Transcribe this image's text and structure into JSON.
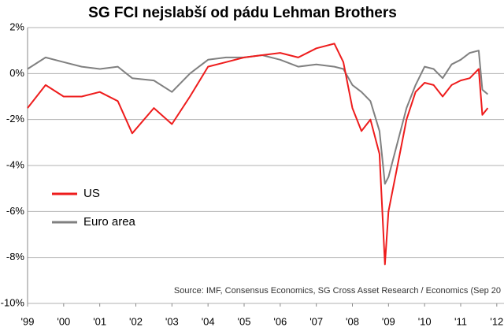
{
  "chart_data": {
    "type": "line",
    "title": "SG FCI nejslabší od pádu Lehman Brothers",
    "note": "Source: IMF, Consensus Economics, SG Cross Asset Research / Economics (Sep 20",
    "x": [
      1999,
      1999.5,
      2000,
      2000.5,
      2001,
      2001.5,
      2001.9,
      2002.5,
      2003,
      2003.5,
      2004,
      2004.5,
      2005,
      2005.5,
      2006,
      2006.5,
      2007,
      2007.5,
      2007.75,
      2008,
      2008.25,
      2008.5,
      2008.75,
      2008.9,
      2009,
      2009.25,
      2009.5,
      2009.75,
      2010,
      2010.25,
      2010.5,
      2010.75,
      2011,
      2011.25,
      2011.5,
      2011.6,
      2011.75
    ],
    "series": [
      {
        "name": "US",
        "color": "#ee1c1c",
        "values": [
          -1.5,
          -0.5,
          -1.0,
          -1.0,
          -0.8,
          -1.2,
          -2.6,
          -1.5,
          -2.2,
          -1.0,
          0.3,
          0.5,
          0.7,
          0.8,
          0.9,
          0.7,
          1.1,
          1.3,
          0.5,
          -1.5,
          -2.5,
          -2.0,
          -3.5,
          -8.3,
          -6.0,
          -4.0,
          -2.0,
          -0.8,
          -0.4,
          -0.5,
          -1.0,
          -0.5,
          -0.3,
          -0.2,
          0.2,
          -1.8,
          -1.5
        ]
      },
      {
        "name": "Euro area",
        "color": "#808080",
        "values": [
          0.2,
          0.7,
          0.5,
          0.3,
          0.2,
          0.3,
          -0.2,
          -0.3,
          -0.8,
          0.0,
          0.6,
          0.7,
          0.7,
          0.8,
          0.6,
          0.3,
          0.4,
          0.3,
          0.2,
          -0.5,
          -0.8,
          -1.2,
          -2.5,
          -4.8,
          -4.5,
          -3.0,
          -1.5,
          -0.5,
          0.3,
          0.2,
          -0.2,
          0.4,
          0.6,
          0.9,
          1.0,
          -0.7,
          -0.9
        ]
      }
    ],
    "xlim": [
      1999,
      2012.2
    ],
    "xticks": [
      {
        "value": 1999,
        "label": "'99"
      },
      {
        "value": 2000,
        "label": "'00"
      },
      {
        "value": 2001,
        "label": "'01"
      },
      {
        "value": 2002,
        "label": "'02"
      },
      {
        "value": 2003,
        "label": "'03"
      },
      {
        "value": 2004,
        "label": "'04"
      },
      {
        "value": 2005,
        "label": "'05"
      },
      {
        "value": 2006,
        "label": "'06"
      },
      {
        "value": 2007,
        "label": "'07"
      },
      {
        "value": 2008,
        "label": "'08"
      },
      {
        "value": 2009,
        "label": "'09"
      },
      {
        "value": 2010,
        "label": "'10"
      },
      {
        "value": 2011,
        "label": "'11"
      },
      {
        "value": 2012,
        "label": "'12"
      }
    ],
    "ylim": [
      -10,
      2
    ],
    "yticks": [
      {
        "value": 2,
        "label": "2%"
      },
      {
        "value": 0,
        "label": "0%"
      },
      {
        "value": -2,
        "label": "-2%"
      },
      {
        "value": -4,
        "label": "-4%"
      },
      {
        "value": -6,
        "label": "-6%"
      },
      {
        "value": -8,
        "label": "-8%"
      },
      {
        "value": -10,
        "label": "-10%"
      }
    ],
    "grid": true,
    "legend": "left"
  }
}
